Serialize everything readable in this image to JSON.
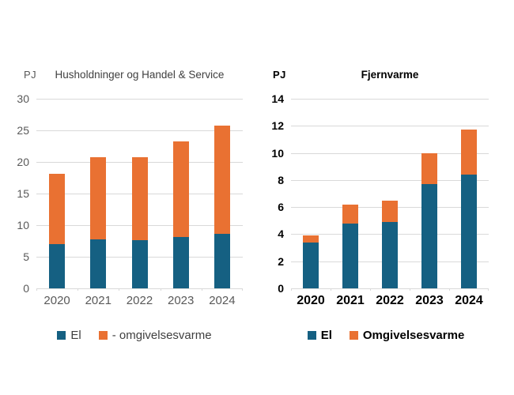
{
  "page": {
    "background_color": "#ffffff",
    "grid_color": "#d9d9d9",
    "left_chart_text_color": "#595959",
    "right_chart_text_color": "#000000"
  },
  "chart_data": [
    {
      "type": "bar",
      "stacked": true,
      "title": "Husholdninger og Handel & Service",
      "unit_label": "PJ",
      "categories": [
        "2020",
        "2021",
        "2022",
        "2023",
        "2024"
      ],
      "series": [
        {
          "name": "El",
          "color": "#156082",
          "values": [
            7.0,
            7.8,
            7.6,
            8.1,
            8.6
          ]
        },
        {
          "name": "- omgivelsesvarme",
          "color": "#e97132",
          "values": [
            11.1,
            12.9,
            13.1,
            15.2,
            17.2
          ]
        }
      ],
      "totals": [
        18.1,
        20.7,
        20.7,
        23.3,
        25.8
      ],
      "ylim": [
        0,
        30
      ],
      "ystep": 5,
      "grid": "horizontal",
      "legend_position": "bottom",
      "bold_labels": false
    },
    {
      "type": "bar",
      "stacked": true,
      "title": "Fjernvarme",
      "unit_label": "PJ",
      "categories": [
        "2020",
        "2021",
        "2022",
        "2023",
        "2024"
      ],
      "series": [
        {
          "name": "El",
          "color": "#156082",
          "values": [
            3.4,
            4.8,
            4.9,
            7.7,
            8.4
          ]
        },
        {
          "name": "Omgivelsesvarme",
          "color": "#e97132",
          "values": [
            0.5,
            1.4,
            1.6,
            2.3,
            3.3
          ]
        }
      ],
      "totals": [
        3.9,
        6.2,
        6.5,
        10.0,
        11.7
      ],
      "ylim": [
        0,
        14
      ],
      "ystep": 2,
      "grid": "horizontal",
      "legend_position": "bottom",
      "bold_labels": true
    }
  ]
}
